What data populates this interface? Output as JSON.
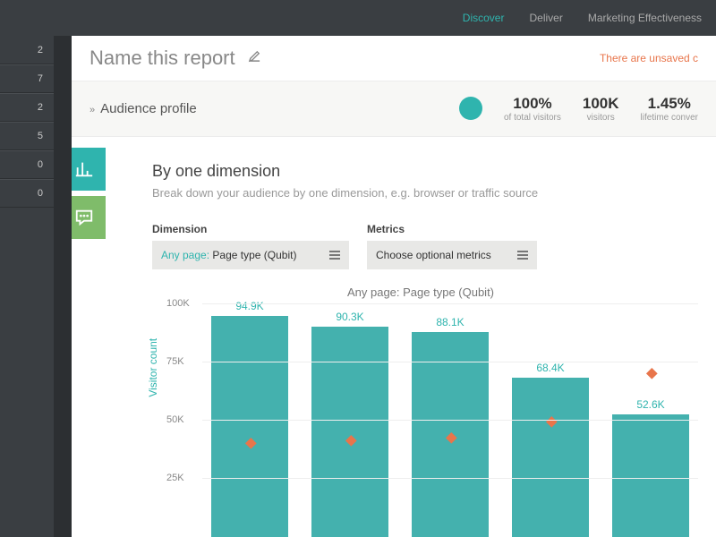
{
  "topnav": {
    "items": [
      {
        "label": "Discover",
        "active": true
      },
      {
        "label": "Deliver",
        "active": false
      },
      {
        "label": "Marketing Effectiveness",
        "active": false
      }
    ]
  },
  "leftbar": {
    "numbers": [
      "2",
      "7",
      "2",
      "5",
      "0",
      "0"
    ]
  },
  "title": {
    "text": "Name this report",
    "warn": "There are unsaved c"
  },
  "profile": {
    "label": "Audience profile",
    "stats": [
      {
        "value": "100%",
        "label": "of total visitors"
      },
      {
        "value": "100K",
        "label": "visitors"
      },
      {
        "value": "1.45%",
        "label": "lifetime conver"
      }
    ]
  },
  "section": {
    "heading": "By one dimension",
    "sub": "Break down your audience by one dimension, e.g. browser or traffic source"
  },
  "controls": {
    "dimension": {
      "label": "Dimension",
      "prefix": "Any page:",
      "value": "Page type (Qubit)"
    },
    "metrics": {
      "label": "Metrics",
      "placeholder": "Choose optional metrics"
    }
  },
  "chart": {
    "type": "bar",
    "title": "Any page: Page type (Qubit)",
    "ylabel": "Visitor count",
    "ylim": [
      0,
      100
    ],
    "yticks": [
      {
        "v": 25,
        "l": "25K"
      },
      {
        "v": 50,
        "l": "50K"
      },
      {
        "v": 75,
        "l": "75K"
      },
      {
        "v": 100,
        "l": "100K"
      }
    ],
    "bar_color": "#44b1ae",
    "marker_color": "#e8754b",
    "grid_color": "#eeeeee",
    "bars": [
      {
        "label": "94.9K",
        "value": 94.9,
        "marker": 39
      },
      {
        "label": "90.3K",
        "value": 90.3,
        "marker": 40
      },
      {
        "label": "88.1K",
        "value": 88.1,
        "marker": 41
      },
      {
        "label": "68.4K",
        "value": 68.4,
        "marker": 48
      },
      {
        "label": "52.6K",
        "value": 52.6,
        "marker": 69
      }
    ]
  }
}
